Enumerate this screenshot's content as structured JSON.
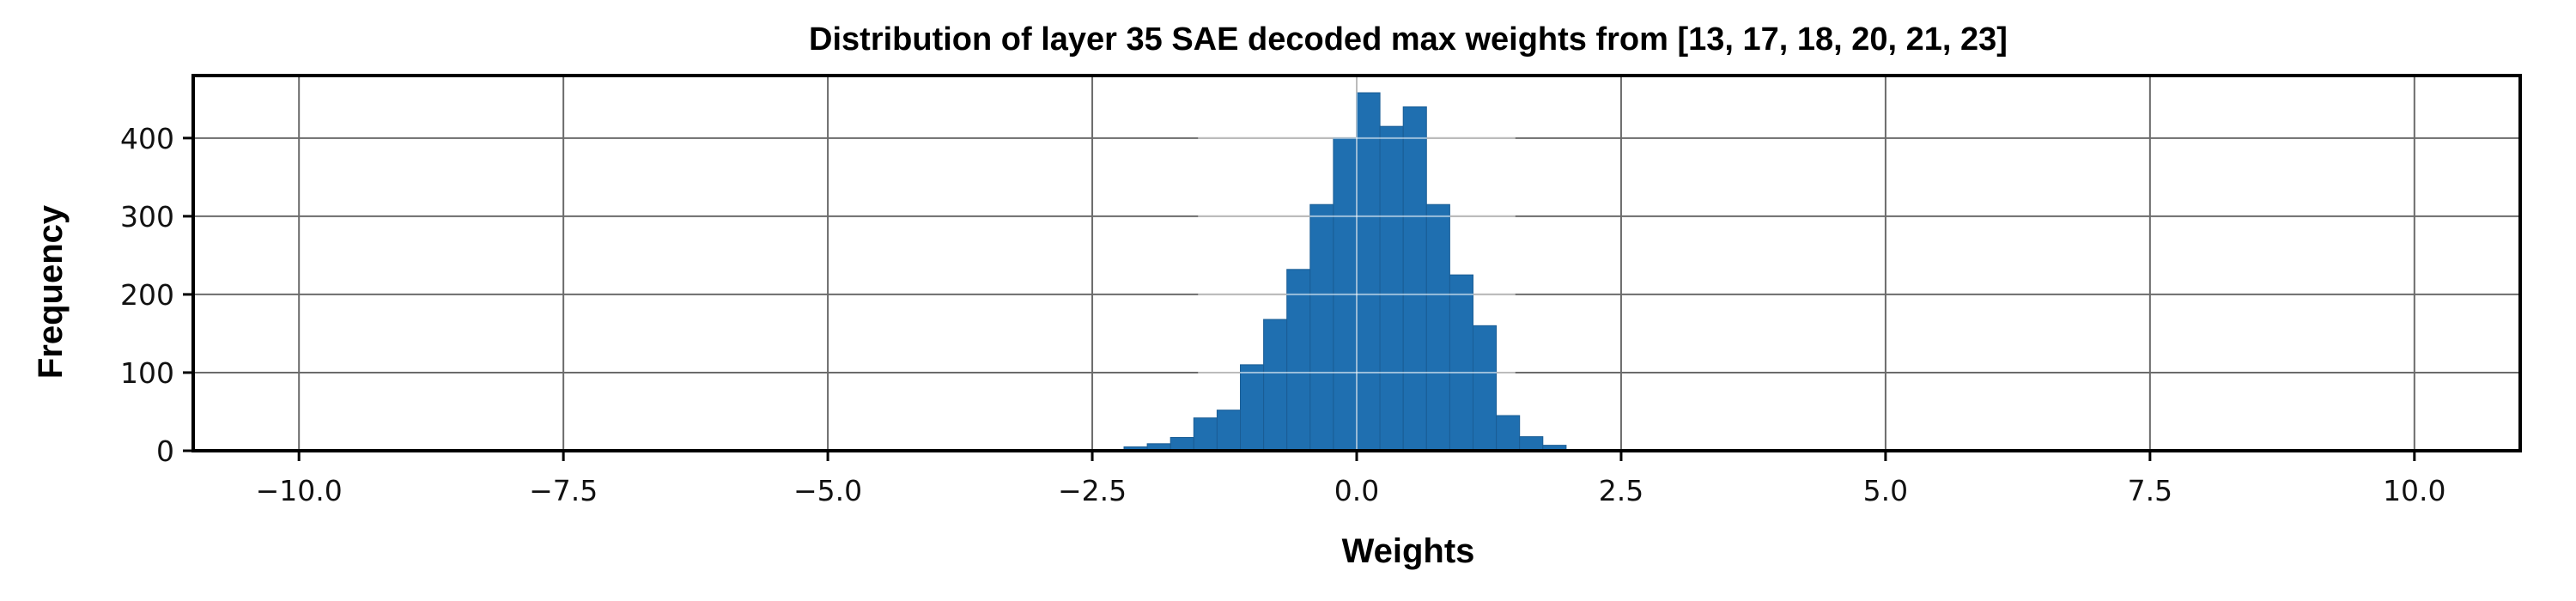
{
  "chart_data": {
    "type": "bar",
    "title": "Distribution of layer 35 SAE decoded max weights from [13, 17, 18, 20, 21, 23]",
    "xlabel": "Weights",
    "ylabel": "Frequency",
    "xlim": [
      -11.0,
      11.0
    ],
    "ylim": [
      0,
      480
    ],
    "grid": true,
    "bar_color": "#1f6fb0",
    "xticks": [
      -10.0,
      -7.5,
      -5.0,
      -2.5,
      0.0,
      2.5,
      5.0,
      7.5,
      10.0
    ],
    "xtick_labels": [
      "−10.0",
      "−7.5",
      "−5.0",
      "−2.5",
      "0.0",
      "2.5",
      "5.0",
      "7.5",
      "10.0"
    ],
    "yticks": [
      0,
      100,
      200,
      300,
      400
    ],
    "ytick_labels": [
      "0",
      "100",
      "200",
      "300",
      "400"
    ],
    "bin_width": 0.22,
    "bin_starts": [
      -2.2,
      -1.98,
      -1.76,
      -1.54,
      -1.32,
      -1.1,
      -0.88,
      -0.66,
      -0.44,
      -0.22,
      0.0,
      0.22,
      0.44,
      0.66,
      0.88,
      1.1,
      1.32,
      1.54,
      1.76
    ],
    "values": [
      5,
      9,
      17,
      42,
      52,
      110,
      168,
      232,
      315,
      400,
      458,
      415,
      440,
      315,
      225,
      160,
      45,
      18,
      7
    ]
  }
}
